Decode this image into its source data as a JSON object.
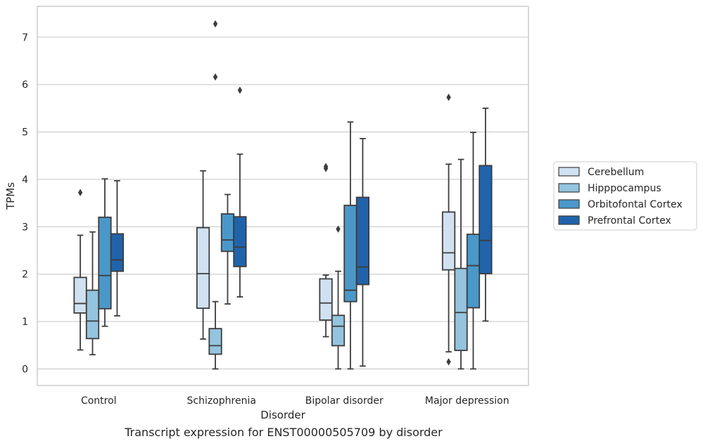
{
  "chart_data": {
    "type": "box",
    "caption": "Transcript expression for ENST00000505709 by disorder",
    "xlabel": "Disorder",
    "ylabel": "TPMs",
    "ylim": [
      -0.35,
      7.65
    ],
    "yticks": [
      0,
      1,
      2,
      3,
      4,
      5,
      6,
      7
    ],
    "categories": [
      "Control",
      "Schizophrenia",
      "Bipolar disorder",
      "Major depression"
    ],
    "grid": "horizontal",
    "legend_position": "right",
    "series": [
      {
        "name": "Cerebellum",
        "color": "#d0e1f2",
        "boxes": [
          {
            "whislo": 0.4,
            "q1": 1.18,
            "med": 1.38,
            "q3": 1.93,
            "whishi": 2.82,
            "fliers": [
              3.72
            ]
          },
          {
            "whislo": 0.63,
            "q1": 1.28,
            "med": 2.01,
            "q3": 2.98,
            "whishi": 4.18,
            "fliers": []
          },
          {
            "whislo": 0.68,
            "q1": 1.03,
            "med": 1.39,
            "q3": 1.9,
            "whislo_note": "",
            "whishi": 1.98,
            "fliers": [
              4.23,
              4.27
            ]
          },
          {
            "whislo": 0.36,
            "q1": 2.09,
            "med": 2.45,
            "q3": 3.31,
            "whishi": 4.32,
            "fliers": [
              0.15,
              5.73
            ]
          }
        ]
      },
      {
        "name": "Hipppocampus",
        "color": "#94c4df",
        "boxes": [
          {
            "whislo": 0.3,
            "q1": 0.64,
            "med": 1.01,
            "q3": 1.66,
            "whishi": 2.89,
            "fliers": []
          },
          {
            "whislo": 0.0,
            "q1": 0.31,
            "med": 0.49,
            "q3": 0.85,
            "whishi": 1.42,
            "fliers": [
              6.16,
              7.28
            ]
          },
          {
            "whislo": 0.0,
            "q1": 0.49,
            "med": 0.9,
            "q3": 1.13,
            "whishi": 2.06,
            "fliers": [
              2.95
            ]
          },
          {
            "whislo": 0.0,
            "q1": 0.39,
            "med": 1.19,
            "q3": 2.12,
            "whishi": 4.42,
            "fliers": []
          }
        ]
      },
      {
        "name": "Orbitofontal Cortex",
        "color": "#4a98c9",
        "boxes": [
          {
            "whislo": 0.9,
            "q1": 1.27,
            "med": 1.97,
            "q3": 3.2,
            "whishi": 4.01,
            "fliers": []
          },
          {
            "whislo": 1.37,
            "q1": 2.48,
            "med": 2.72,
            "q3": 3.27,
            "whishi": 3.68,
            "fliers": []
          },
          {
            "whislo": 0.0,
            "q1": 1.42,
            "med": 1.66,
            "q3": 3.45,
            "whishi": 5.21,
            "fliers": []
          },
          {
            "whislo": 0.0,
            "q1": 1.29,
            "med": 2.18,
            "q3": 2.84,
            "whishi": 4.99,
            "fliers": []
          }
        ]
      },
      {
        "name": "Prefrontal Cortex",
        "color": "#2163aa",
        "boxes": [
          {
            "whislo": 1.12,
            "q1": 2.06,
            "med": 2.3,
            "q3": 2.85,
            "whishi": 3.97,
            "fliers": []
          },
          {
            "whislo": 1.52,
            "q1": 2.16,
            "med": 2.57,
            "q3": 3.21,
            "whishi": 4.53,
            "fliers": [
              5.88
            ]
          },
          {
            "whislo": 0.06,
            "q1": 1.78,
            "med": 2.15,
            "q3": 3.62,
            "whishi": 4.86,
            "fliers": []
          },
          {
            "whislo": 1.01,
            "q1": 2.01,
            "med": 2.71,
            "q3": 4.29,
            "whishi": 5.5,
            "fliers": []
          }
        ]
      }
    ]
  }
}
